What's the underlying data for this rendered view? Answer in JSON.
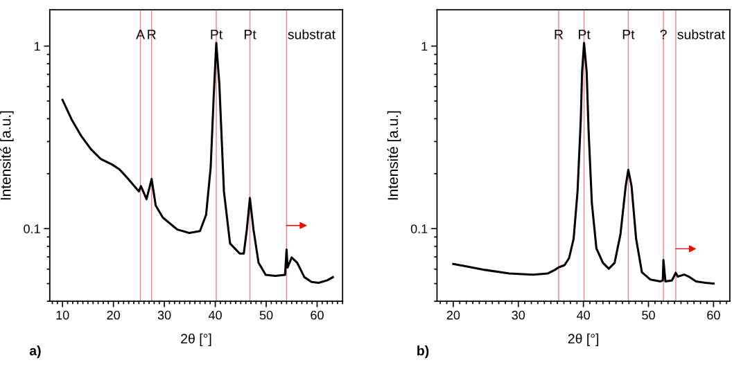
{
  "chart_data": [
    {
      "type": "line",
      "xlabel": "2θ [°]",
      "ylabel": "Intensité [a.u.]",
      "log": "y",
      "xlim": [
        7.5,
        65
      ],
      "xticks": [
        10,
        20,
        30,
        40,
        50,
        60
      ],
      "ylim": [
        0.04,
        1.58
      ],
      "yticks": [
        0.1,
        1
      ],
      "grid": false,
      "series": [
        {
          "color": "#000000",
          "x": [
            10,
            11.8,
            13.7,
            15.6,
            17.5,
            19.8,
            21.2,
            22.7,
            24.1,
            25.0,
            25.4,
            26.5,
            27.5,
            28.3,
            29.7,
            32.5,
            34.9,
            37.0,
            38.2,
            39.1,
            39.7,
            40.2,
            40.8,
            41.7,
            42.9,
            44.8,
            45.6,
            46.2,
            46.8,
            47.5,
            48.5,
            49.9,
            51.8,
            53.7,
            54.0,
            54.2,
            55.0,
            56.1,
            57.5,
            58.9,
            60.3,
            62.0,
            63.1
          ],
          "values": [
            0.507,
            0.396,
            0.321,
            0.272,
            0.241,
            0.224,
            0.211,
            0.19,
            0.171,
            0.16,
            0.171,
            0.145,
            0.187,
            0.134,
            0.115,
            0.099,
            0.0947,
            0.097,
            0.119,
            0.217,
            0.536,
            1.04,
            0.62,
            0.16,
            0.083,
            0.073,
            0.073,
            0.099,
            0.147,
            0.099,
            0.065,
            0.0558,
            0.0551,
            0.0558,
            0.0767,
            0.0612,
            0.0695,
            0.065,
            0.0542,
            0.051,
            0.0505,
            0.0521,
            0.0542
          ]
        }
      ],
      "ref_lines": [
        {
          "axis": "x",
          "value": 25.3,
          "label": "A",
          "color": "#f08080"
        },
        {
          "axis": "x",
          "value": 27.5,
          "label": "R",
          "color": "#f08080"
        },
        {
          "axis": "x",
          "value": 40.2,
          "label": "Pt",
          "color": "#f08080"
        },
        {
          "axis": "x",
          "value": 46.8,
          "label": "Pt",
          "color": "#f08080"
        },
        {
          "axis": "x",
          "value": 54.0,
          "label": "substrat",
          "color": "#f08080"
        }
      ],
      "annotations": [
        "a)"
      ]
    },
    {
      "type": "line",
      "xlabel": "2θ [°]",
      "ylabel": "Intensité [a.u.]",
      "log": "y",
      "xlim": [
        17.5,
        62.5
      ],
      "xticks": [
        20,
        30,
        40,
        50,
        60
      ],
      "ylim": [
        0.04,
        1.58
      ],
      "yticks": [
        0.1,
        1
      ],
      "grid": false,
      "series": [
        {
          "color": "#000000",
          "x": [
            20,
            22.0,
            24.9,
            28.6,
            32.3,
            34.5,
            35.6,
            36.2,
            37.1,
            37.8,
            38.5,
            39.1,
            39.6,
            39.8,
            40.1,
            40.5,
            40.8,
            41.3,
            42.0,
            43.0,
            43.9,
            44.8,
            45.7,
            46.5,
            46.9,
            47.4,
            48.1,
            49.0,
            50.3,
            51.8,
            52.2,
            52.3,
            52.6,
            53.6,
            54.2,
            54.5,
            55.5,
            56.2,
            57.3,
            58.8,
            60.0
          ],
          "values": [
            0.064,
            0.0621,
            0.0594,
            0.0568,
            0.0559,
            0.0568,
            0.0594,
            0.0613,
            0.0631,
            0.069,
            0.088,
            0.16,
            0.396,
            0.724,
            1.04,
            0.724,
            0.341,
            0.138,
            0.0778,
            0.065,
            0.0603,
            0.065,
            0.0933,
            0.171,
            0.21,
            0.171,
            0.088,
            0.0576,
            0.0526,
            0.0514,
            0.052,
            0.0674,
            0.0514,
            0.052,
            0.0573,
            0.0546,
            0.056,
            0.0546,
            0.0514,
            0.0505,
            0.05
          ]
        }
      ],
      "ref_lines": [
        {
          "axis": "x",
          "value": 36.2,
          "label": "R",
          "color": "#f08080"
        },
        {
          "axis": "x",
          "value": 40.1,
          "label": "Pt",
          "color": "#f08080"
        },
        {
          "axis": "x",
          "value": 46.9,
          "label": "Pt",
          "color": "#f08080"
        },
        {
          "axis": "x",
          "value": 52.3,
          "label": "?",
          "color": "#f08080"
        },
        {
          "axis": "x",
          "value": 54.2,
          "label": "substrat",
          "color": "#f08080"
        }
      ],
      "annotations": [
        "b)"
      ]
    }
  ]
}
